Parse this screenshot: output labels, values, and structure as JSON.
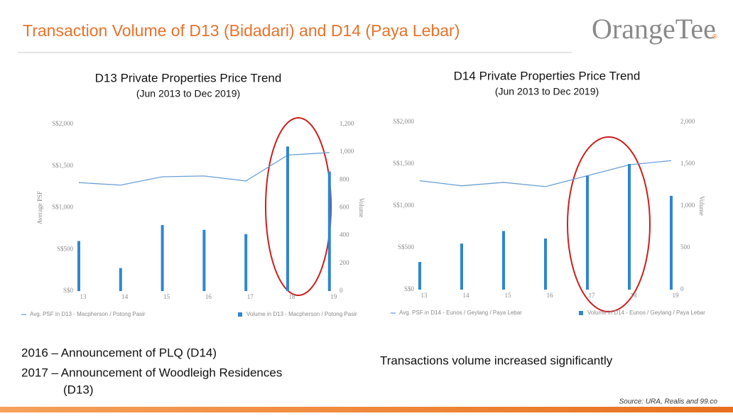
{
  "slide": {
    "title": "Transaction Volume of D13 (Bidadari) and D14 (Paya Lebar)",
    "logo": "OrangeTee",
    "logo_mark": "®",
    "notes": [
      "2016 – Announcement of PLQ (D14)",
      "2017 – Announcement of Woodleigh Residences",
      "(D13)"
    ],
    "remark": "Transactions volume increased significantly",
    "source": "Source: URA, Realis and 99.co"
  },
  "chart_data": [
    {
      "type": "combo",
      "title": "D13 Private Properties Price Trend",
      "subtitle": "(Jun 2013 to Dec 2019)",
      "ylabel": "Average PSF",
      "y2label": "Volume",
      "categories": [
        "13",
        "14",
        "15",
        "16",
        "17",
        "18",
        "19"
      ],
      "series": [
        {
          "name": "Avg. PSF in D13 - Macpherson / Potong Pasir",
          "type": "line",
          "axis": "y",
          "color": "#6aa0d4",
          "values": [
            1300,
            1270,
            1370,
            1380,
            1320,
            1630,
            1660
          ]
        },
        {
          "name": "Volume in D13 - Macpherson / Potong Pasir",
          "type": "bar",
          "axis": "y2",
          "color": "#2f86d1",
          "values": [
            360,
            165,
            475,
            440,
            410,
            1040,
            860
          ]
        }
      ],
      "ylim": [
        0,
        2000
      ],
      "yticks": [
        {
          "value": 0,
          "label": "S$0"
        },
        {
          "value": 500,
          "label": "S$500"
        },
        {
          "value": 1000,
          "label": "S$1,000"
        },
        {
          "value": 1500,
          "label": "S$1,500"
        },
        {
          "value": 2000,
          "label": "S$2,000"
        }
      ],
      "y2lim": [
        0,
        1200
      ],
      "y2ticks": [
        0,
        200,
        400,
        600,
        800,
        {
          "value": 1000,
          "label": "1,000"
        },
        {
          "value": 1200,
          "label": "1,200"
        }
      ]
    },
    {
      "type": "combo",
      "title": "D14 Private Properties Price Trend",
      "subtitle": "(Jun 2013 to Dec 2019)",
      "y2label": "Volume",
      "categories": [
        "13",
        "14",
        "15",
        "16",
        "17",
        "18",
        "19"
      ],
      "series": [
        {
          "name": "Avg. PSF in D14 - Eunos / Geylang / Paya Lebar",
          "type": "line",
          "axis": "y",
          "color": "#6aa0d4",
          "values": [
            1300,
            1240,
            1280,
            1230,
            1360,
            1490,
            1540
          ]
        },
        {
          "name": "Volume in D14 - Eunos / Geylang / Paya Lebar",
          "type": "bar",
          "axis": "y2",
          "color": "#2f86d1",
          "values": [
            330,
            550,
            700,
            610,
            1360,
            1500,
            1120
          ]
        }
      ],
      "ylim": [
        0,
        2000
      ],
      "yticks": [
        {
          "value": 0,
          "label": "S$0"
        },
        {
          "value": 500,
          "label": "S$500"
        },
        {
          "value": 1000,
          "label": "S$1,000"
        },
        {
          "value": 1500,
          "label": "S$1,500"
        },
        {
          "value": 2000,
          "label": "S$2,000"
        }
      ],
      "y2lim": [
        0,
        2000
      ],
      "y2ticks": [
        0,
        500,
        {
          "value": 1000,
          "label": "1,000"
        },
        {
          "value": 1500,
          "label": "1,500"
        },
        {
          "value": 2000,
          "label": "2,000"
        }
      ]
    }
  ]
}
